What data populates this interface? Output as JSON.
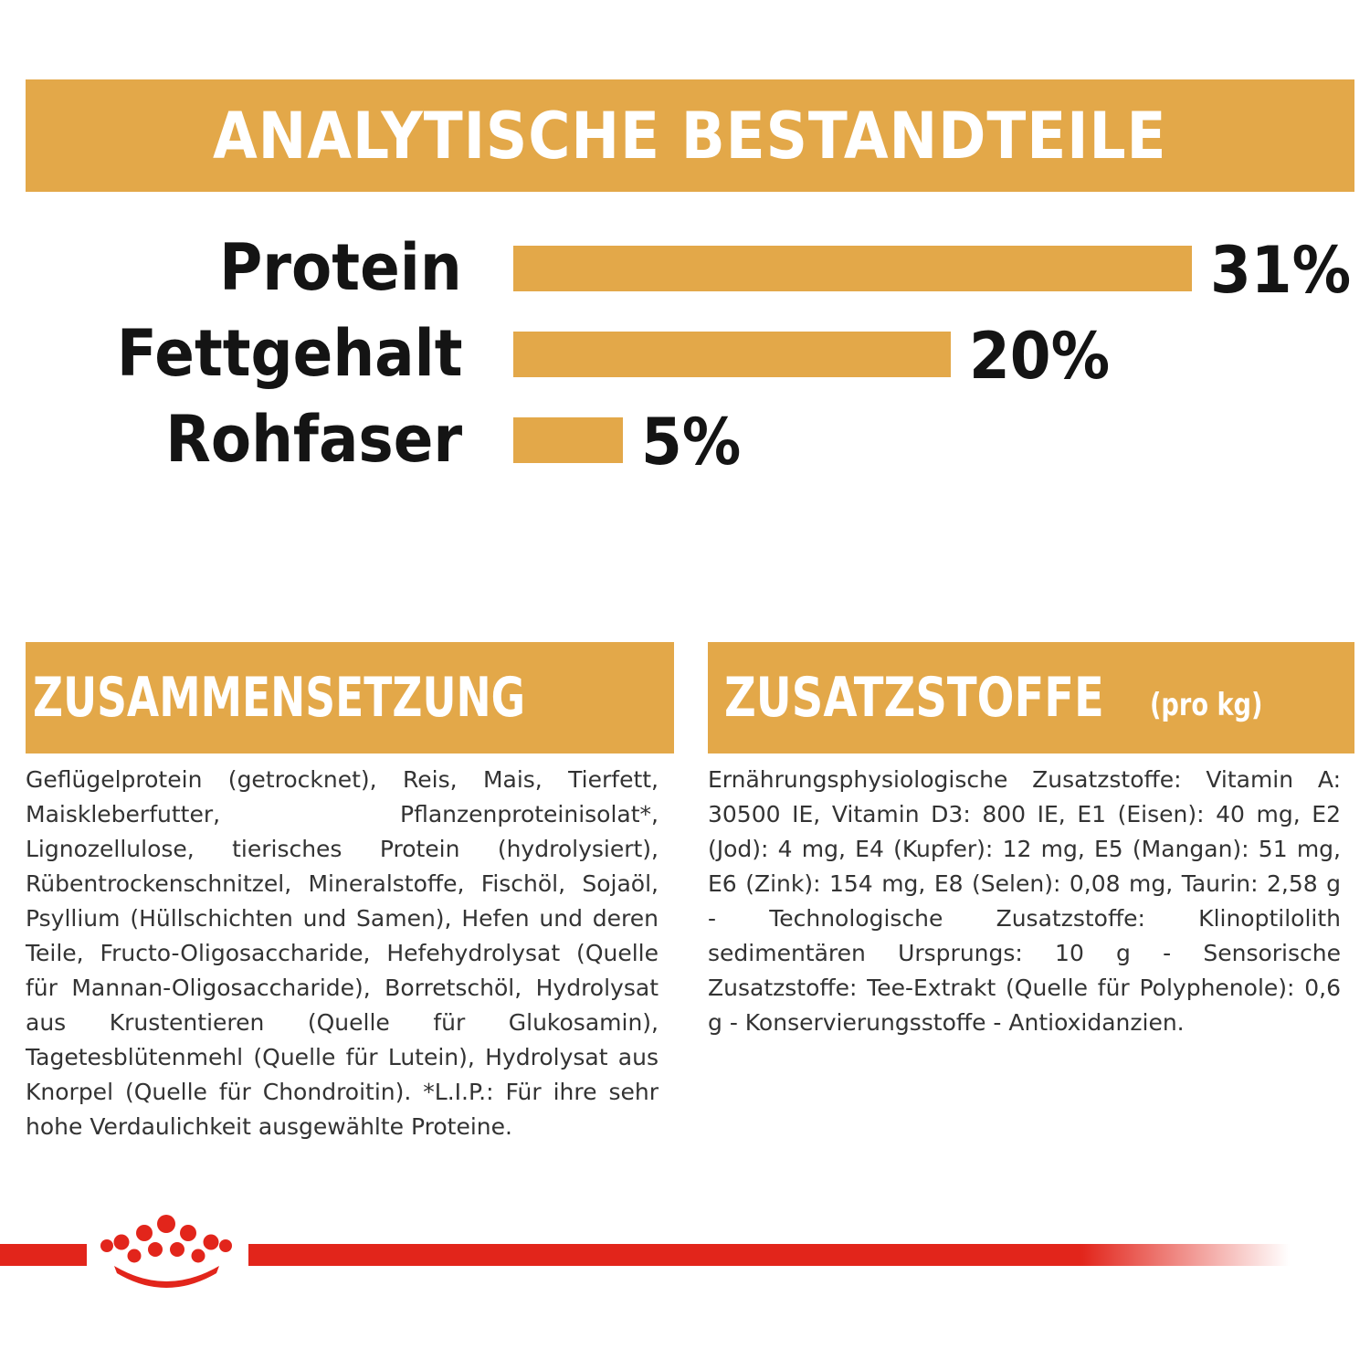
{
  "banners": {
    "analytic": "ANALYTISCHE BESTANDTEILE",
    "composition": "ZUSAMMENSETZUNG",
    "additives": "ZUSATZSTOFFE",
    "additives_unit": "(pro kg)"
  },
  "chart_data": {
    "type": "bar",
    "orientation": "horizontal",
    "title": "ANALYTISCHE BESTANDTEILE",
    "categories": [
      "Protein",
      "Fettgehalt",
      "Rohfaser"
    ],
    "values": [
      31,
      20,
      5
    ],
    "value_labels": [
      "31%",
      "20%",
      "5%"
    ],
    "unit": "%",
    "xlim": [
      0,
      31
    ],
    "grid": false,
    "color": "#e3a849"
  },
  "composition": {
    "text": "Geflügelprotein (getrocknet), Reis, Mais, Tierfett, Maiskleberfutter, Pflanzenproteinisolat*, Lignozellulose, tierisches Protein (hydrolysiert), Rübentrockenschnitzel, Mineralstoffe, Fischöl, Sojaöl, Psyllium (Hüllschichten und Samen), Hefen und deren Teile, Fructo-Oligosaccharide, Hefehydrolysat (Quelle für Mannan-Oligosaccharide), Borretschöl, Hydrolysat aus Krustentieren (Quelle für Glukosamin), Tagetesblütenmehl (Quelle für Lutein), Hydrolysat aus Knorpel (Quelle für Chondroitin). *L.I.P.: Für ihre sehr hohe Verdaulichkeit ausgewählte Proteine."
  },
  "additives": {
    "text": "Ernährungsphysiologische Zusatzstoffe: Vitamin A: 30500 IE, Vitamin D3: 800 IE, E1 (Eisen): 40 mg, E2 (Jod): 4 mg, E4 (Kupfer): 12 mg, E5 (Mangan): 51 mg, E6 (Zink): 154 mg, E8 (Selen): 0,08 mg, Taurin: 2,58 g - Technologische Zusatzstoffe: Klinoptilolith sedimentären Ursprungs: 10 g - Sensorische Zusatzstoffe: Tee-Extrakt (Quelle für Polyphenole): 0,6 g - Konservierungsstoffe - Antioxidanzien."
  },
  "colors": {
    "accent": "#e3a849",
    "brand_red": "#e2251b",
    "text_dark": "#141414",
    "text_body": "#333333"
  },
  "icons": {
    "logo": "royal-crown-logo"
  }
}
